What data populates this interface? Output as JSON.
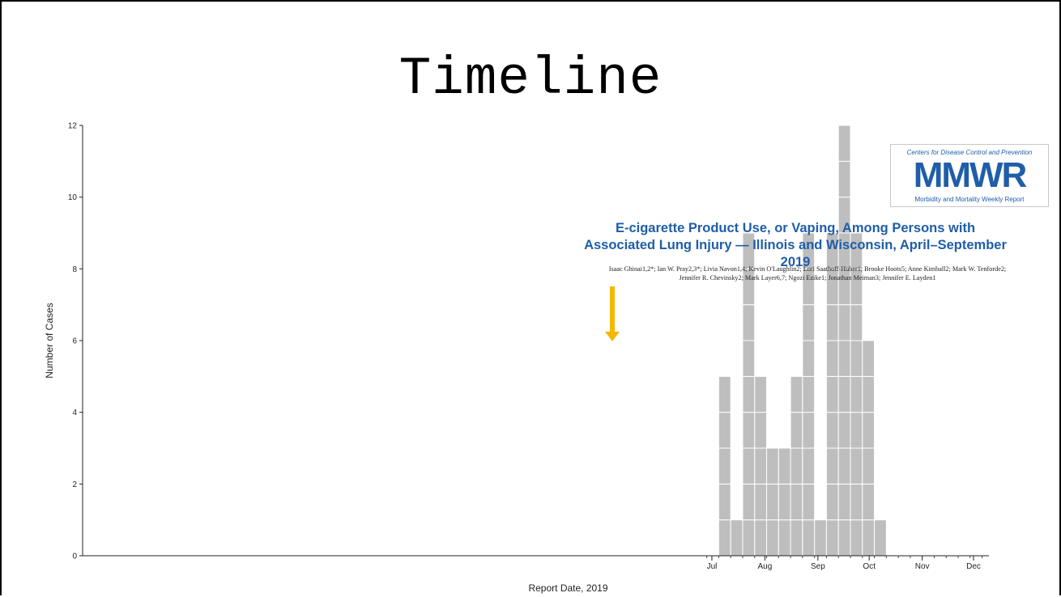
{
  "slide": {
    "title": "Timeline"
  },
  "mmwr": {
    "org": "Centers for Disease Control and Prevention",
    "mark": "MMWR",
    "subtitle": "Morbidity and Mortality Weekly Report",
    "article_title_line1": "E-cigarette Product Use, or Vaping, Among Persons with",
    "article_title_line2": "Associated Lung Injury — Illinois and Wisconsin, April–September 2019",
    "authors_line1": "Isaac Ghinai1,2*; Ian W. Pray2,3*; Livia Navon1,4; Kevin O'Laughlin2; Lori Saathoff-Huber1; Brooke Hoots5; Anne Kimball2; Mark W. Tenforde2;",
    "authors_line2": "Jennifer R. Chevinsky2; Mark Layer6,7; Ngozi Ezike1; Jonathan Meiman3; Jennifer E. Layden1"
  },
  "annotation": {
    "arrow_color": "#f5b800"
  },
  "chart_data": {
    "type": "bar",
    "xlabel": "Report Date, 2019",
    "ylabel": "Number of Cases",
    "ylim": [
      0,
      12
    ],
    "y_ticks": [
      "0",
      "2",
      "4",
      "6",
      "8",
      "10",
      "12"
    ],
    "x_ticks": [
      "Jul",
      "Aug",
      "Sep",
      "Oct",
      "Nov",
      "Dec"
    ],
    "x_tick_dates": [
      "2019-07-01",
      "2019-08-01",
      "2019-09-01",
      "2019-10-01",
      "2019-11-01",
      "2019-12-01"
    ],
    "x_range": [
      "2018-06-28",
      "2019-12-10"
    ],
    "bar_width_days": 7,
    "bars": [
      {
        "start": "2019-07-05",
        "value": 5
      },
      {
        "start": "2019-07-12",
        "value": 1
      },
      {
        "start": "2019-07-19",
        "value": 9
      },
      {
        "start": "2019-07-26",
        "value": 5
      },
      {
        "start": "2019-08-02",
        "value": 3
      },
      {
        "start": "2019-08-09",
        "value": 3
      },
      {
        "start": "2019-08-16",
        "value": 5
      },
      {
        "start": "2019-08-23",
        "value": 9
      },
      {
        "start": "2019-08-30",
        "value": 1
      },
      {
        "start": "2019-09-06",
        "value": 9
      },
      {
        "start": "2019-09-13",
        "value": 12
      },
      {
        "start": "2019-09-20",
        "value": 9
      },
      {
        "start": "2019-09-27",
        "value": 6
      },
      {
        "start": "2019-10-04",
        "value": 1
      }
    ],
    "bar_color": "#bebebe",
    "grid": false
  }
}
